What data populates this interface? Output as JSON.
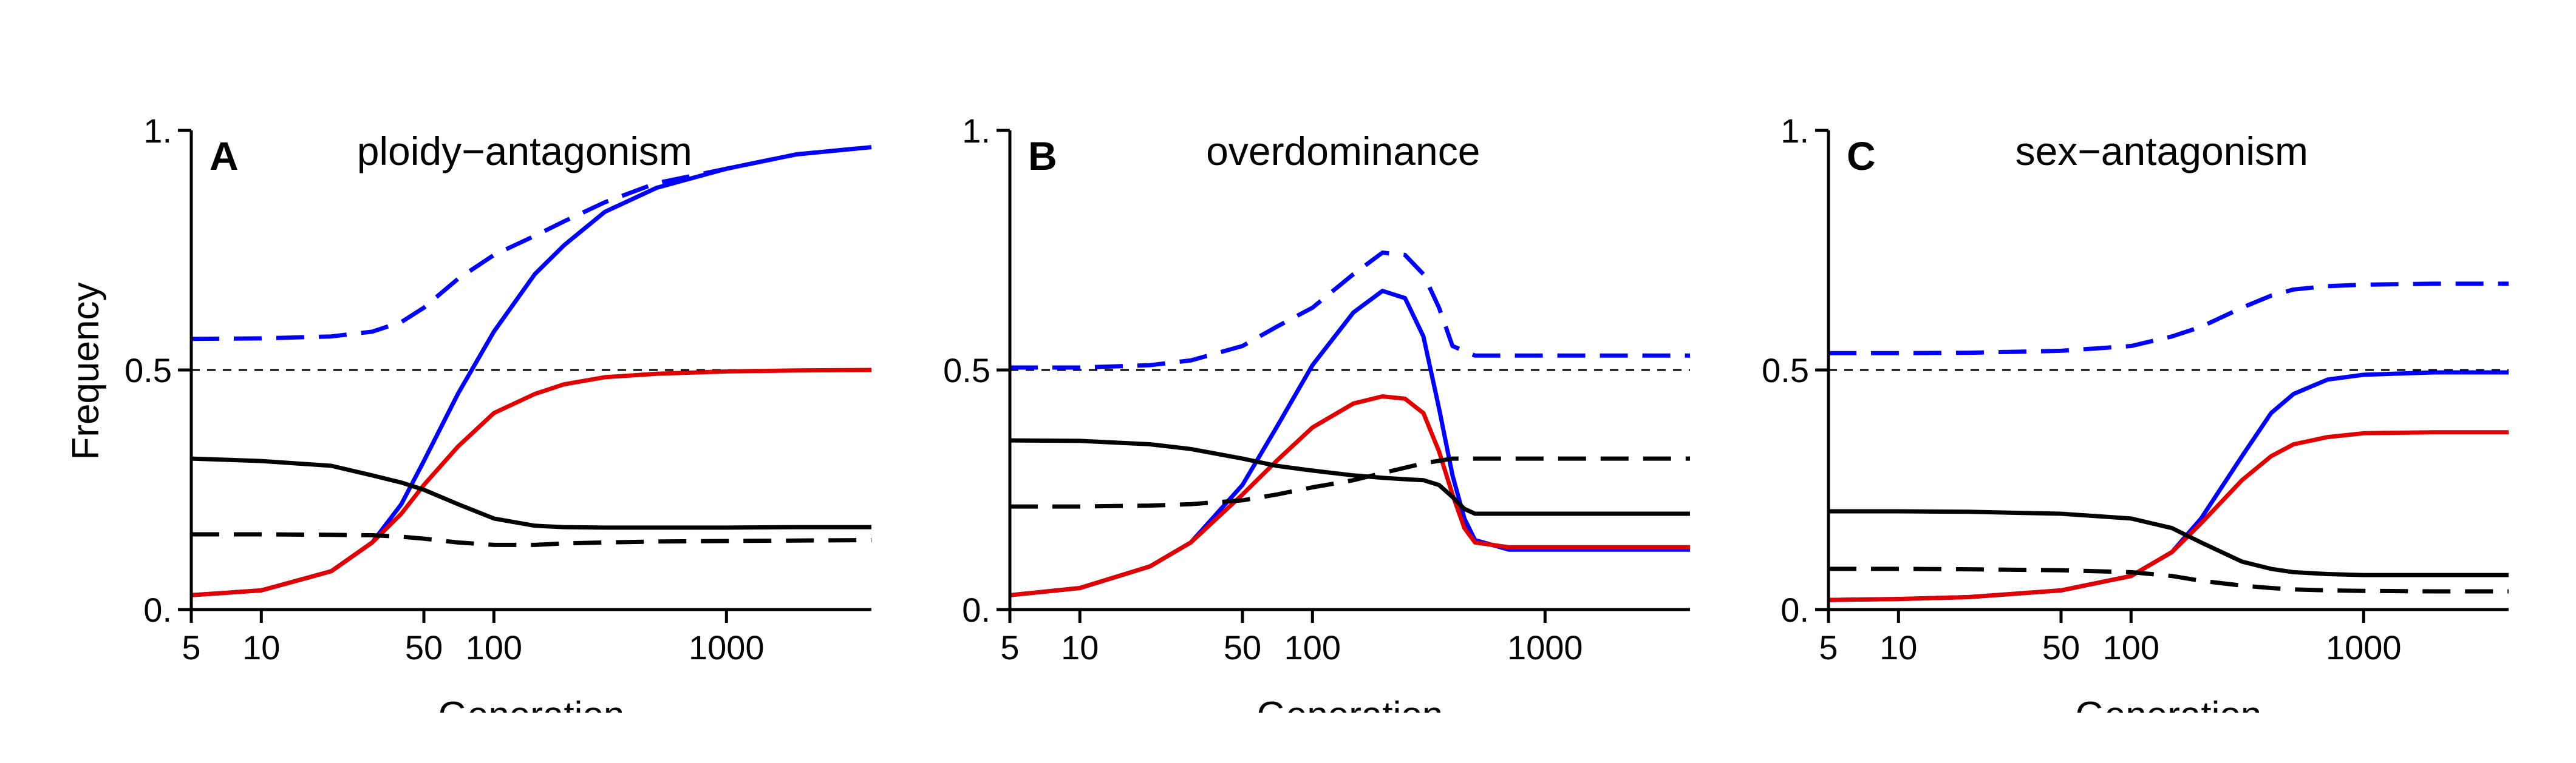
{
  "ylabel": "Frequency",
  "chart_data": [
    {
      "type": "line",
      "panel_letter": "A",
      "title": "ploidy−antagonism",
      "xlabel": "Generation",
      "xscale": "log",
      "xlim": [
        5,
        4200
      ],
      "ylim": [
        0,
        1
      ],
      "x_ticks": [
        5,
        10,
        50,
        100,
        1000
      ],
      "x_tick_labels": [
        "5",
        "10",
        "50",
        "100",
        "1000"
      ],
      "y_ticks": [
        0,
        0.5,
        1
      ],
      "y_tick_labels": [
        "0.",
        "0.5",
        "1."
      ],
      "reference_line_y": 0.5,
      "series": [
        {
          "color": "#0000ff",
          "dash": "dashed",
          "x": [
            5,
            10,
            20,
            30,
            40,
            50,
            70,
            100,
            150,
            200,
            300,
            500,
            1000,
            2000,
            4200
          ],
          "y": [
            0.565,
            0.566,
            0.57,
            0.58,
            0.6,
            0.63,
            0.69,
            0.74,
            0.78,
            0.81,
            0.85,
            0.89,
            0.92,
            0.95,
            0.965
          ]
        },
        {
          "color": "#0000ff",
          "dash": "solid",
          "x": [
            5,
            10,
            20,
            30,
            40,
            50,
            70,
            100,
            150,
            200,
            300,
            500,
            1000,
            2000,
            4200
          ],
          "y": [
            0.03,
            0.04,
            0.08,
            0.14,
            0.22,
            0.31,
            0.45,
            0.58,
            0.7,
            0.76,
            0.83,
            0.88,
            0.92,
            0.95,
            0.965
          ]
        },
        {
          "color": "#e00000",
          "dash": "solid",
          "x": [
            5,
            10,
            20,
            30,
            40,
            50,
            70,
            100,
            150,
            200,
            300,
            500,
            1000,
            2000,
            4200
          ],
          "y": [
            0.03,
            0.04,
            0.08,
            0.14,
            0.2,
            0.26,
            0.34,
            0.41,
            0.45,
            0.47,
            0.485,
            0.492,
            0.497,
            0.499,
            0.5
          ]
        },
        {
          "color": "#000000",
          "dash": "solid",
          "x": [
            5,
            10,
            20,
            30,
            40,
            50,
            70,
            100,
            150,
            200,
            300,
            500,
            1000,
            2000,
            4200
          ],
          "y": [
            0.315,
            0.31,
            0.3,
            0.28,
            0.265,
            0.25,
            0.22,
            0.19,
            0.175,
            0.172,
            0.171,
            0.171,
            0.171,
            0.172,
            0.172
          ]
        },
        {
          "color": "#000000",
          "dash": "dashed",
          "x": [
            5,
            10,
            20,
            30,
            40,
            50,
            70,
            100,
            150,
            200,
            300,
            500,
            1000,
            2000,
            4200
          ],
          "y": [
            0.157,
            0.157,
            0.156,
            0.155,
            0.152,
            0.148,
            0.14,
            0.135,
            0.135,
            0.138,
            0.14,
            0.142,
            0.143,
            0.144,
            0.145
          ]
        }
      ]
    },
    {
      "type": "line",
      "panel_letter": "B",
      "title": "overdominance",
      "xlabel": "Generation",
      "xscale": "log",
      "xlim": [
        5,
        4200
      ],
      "ylim": [
        0,
        1
      ],
      "x_ticks": [
        5,
        10,
        50,
        100,
        1000
      ],
      "x_tick_labels": [
        "5",
        "10",
        "50",
        "100",
        "1000"
      ],
      "y_ticks": [
        0,
        0.5,
        1
      ],
      "y_tick_labels": [
        "0.",
        "0.5",
        "1."
      ],
      "reference_line_y": 0.5,
      "series": [
        {
          "color": "#0000ff",
          "dash": "dashed",
          "x": [
            5,
            10,
            20,
            30,
            50,
            70,
            100,
            150,
            200,
            250,
            300,
            350,
            400,
            500,
            700,
            1000,
            2000,
            4200
          ],
          "y": [
            0.505,
            0.505,
            0.51,
            0.52,
            0.55,
            0.59,
            0.63,
            0.7,
            0.745,
            0.74,
            0.7,
            0.63,
            0.55,
            0.53,
            0.53,
            0.53,
            0.53,
            0.53
          ]
        },
        {
          "color": "#0000ff",
          "dash": "solid",
          "x": [
            5,
            10,
            20,
            30,
            50,
            70,
            100,
            150,
            200,
            250,
            300,
            350,
            400,
            450,
            500,
            700,
            1000,
            2000,
            4200
          ],
          "y": [
            0.03,
            0.045,
            0.09,
            0.14,
            0.26,
            0.38,
            0.51,
            0.62,
            0.665,
            0.65,
            0.57,
            0.42,
            0.28,
            0.19,
            0.145,
            0.125,
            0.125,
            0.125,
            0.125
          ]
        },
        {
          "color": "#e00000",
          "dash": "solid",
          "x": [
            5,
            10,
            20,
            30,
            50,
            70,
            100,
            150,
            200,
            250,
            300,
            350,
            400,
            450,
            500,
            700,
            1000,
            2000,
            4200
          ],
          "y": [
            0.03,
            0.045,
            0.09,
            0.14,
            0.24,
            0.31,
            0.38,
            0.43,
            0.445,
            0.44,
            0.41,
            0.33,
            0.24,
            0.17,
            0.14,
            0.13,
            0.13,
            0.13,
            0.13
          ]
        },
        {
          "color": "#000000",
          "dash": "solid",
          "x": [
            5,
            10,
            20,
            30,
            50,
            70,
            100,
            150,
            200,
            250,
            300,
            350,
            400,
            450,
            500,
            700,
            1000,
            2000,
            4200
          ],
          "y": [
            0.353,
            0.352,
            0.345,
            0.335,
            0.315,
            0.3,
            0.29,
            0.28,
            0.275,
            0.272,
            0.27,
            0.26,
            0.235,
            0.21,
            0.2,
            0.2,
            0.2,
            0.2,
            0.2
          ]
        },
        {
          "color": "#000000",
          "dash": "dashed",
          "x": [
            5,
            10,
            20,
            30,
            50,
            70,
            100,
            150,
            200,
            300,
            400,
            500,
            700,
            1000,
            2000,
            4200
          ],
          "y": [
            0.215,
            0.215,
            0.217,
            0.22,
            0.228,
            0.24,
            0.255,
            0.27,
            0.285,
            0.305,
            0.315,
            0.315,
            0.315,
            0.315,
            0.315,
            0.315
          ]
        }
      ]
    },
    {
      "type": "line",
      "panel_letter": "C",
      "title": "sex−antagonism",
      "xlabel": "Generation",
      "xscale": "log",
      "xlim": [
        5,
        4200
      ],
      "ylim": [
        0,
        1
      ],
      "x_ticks": [
        5,
        10,
        50,
        100,
        1000
      ],
      "x_tick_labels": [
        "5",
        "10",
        "50",
        "100",
        "1000"
      ],
      "y_ticks": [
        0,
        0.5,
        1
      ],
      "y_tick_labels": [
        "0.",
        "0.5",
        "1."
      ],
      "reference_line_y": 0.5,
      "series": [
        {
          "color": "#0000ff",
          "dash": "dashed",
          "x": [
            5,
            10,
            20,
            50,
            100,
            150,
            200,
            300,
            400,
            500,
            700,
            1000,
            2000,
            4200
          ],
          "y": [
            0.535,
            0.535,
            0.536,
            0.54,
            0.55,
            0.57,
            0.59,
            0.63,
            0.655,
            0.668,
            0.675,
            0.678,
            0.68,
            0.68
          ]
        },
        {
          "color": "#0000ff",
          "dash": "solid",
          "x": [
            5,
            10,
            20,
            50,
            100,
            150,
            200,
            300,
            400,
            500,
            700,
            1000,
            2000,
            4200
          ],
          "y": [
            0.02,
            0.022,
            0.026,
            0.04,
            0.07,
            0.12,
            0.19,
            0.32,
            0.41,
            0.45,
            0.48,
            0.49,
            0.495,
            0.495
          ]
        },
        {
          "color": "#e00000",
          "dash": "solid",
          "x": [
            5,
            10,
            20,
            50,
            100,
            150,
            200,
            300,
            400,
            500,
            700,
            1000,
            2000,
            4200
          ],
          "y": [
            0.02,
            0.022,
            0.026,
            0.04,
            0.07,
            0.12,
            0.18,
            0.27,
            0.32,
            0.345,
            0.36,
            0.368,
            0.37,
            0.37
          ]
        },
        {
          "color": "#000000",
          "dash": "solid",
          "x": [
            5,
            10,
            20,
            50,
            100,
            150,
            200,
            300,
            400,
            500,
            700,
            1000,
            2000,
            4200
          ],
          "y": [
            0.205,
            0.205,
            0.204,
            0.2,
            0.19,
            0.17,
            0.14,
            0.1,
            0.085,
            0.078,
            0.074,
            0.072,
            0.072,
            0.072
          ]
        },
        {
          "color": "#000000",
          "dash": "dashed",
          "x": [
            5,
            10,
            20,
            50,
            100,
            150,
            200,
            300,
            400,
            500,
            700,
            1000,
            2000,
            4200
          ],
          "y": [
            0.085,
            0.085,
            0.084,
            0.082,
            0.078,
            0.07,
            0.06,
            0.05,
            0.045,
            0.042,
            0.04,
            0.039,
            0.038,
            0.038
          ]
        }
      ]
    }
  ]
}
